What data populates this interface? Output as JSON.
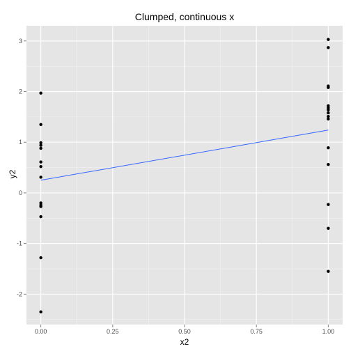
{
  "chart_data": {
    "type": "scatter",
    "title": "Clumped, continuous x",
    "xlabel": "x2",
    "ylabel": "y2",
    "xlim": [
      -0.05,
      1.05
    ],
    "ylim": [
      -2.6,
      3.3
    ],
    "x_ticks": [
      0.0,
      0.25,
      0.5,
      0.75,
      1.0
    ],
    "x_tick_labels": [
      "0.00",
      "0.25",
      "0.50",
      "0.75",
      "1.00"
    ],
    "y_ticks": [
      -2,
      -1,
      0,
      1,
      2,
      3
    ],
    "y_tick_labels": [
      "-2",
      "-1",
      "0",
      "1",
      "2",
      "3"
    ],
    "grid": true,
    "points": [
      {
        "x": 0,
        "y": 1.97
      },
      {
        "x": 0,
        "y": 1.35
      },
      {
        "x": 0,
        "y": 0.99
      },
      {
        "x": 0,
        "y": 0.94
      },
      {
        "x": 0,
        "y": 0.88
      },
      {
        "x": 0,
        "y": 0.61
      },
      {
        "x": 0,
        "y": 0.52
      },
      {
        "x": 0,
        "y": 0.31
      },
      {
        "x": 0,
        "y": -0.2
      },
      {
        "x": 0,
        "y": -0.24
      },
      {
        "x": 0,
        "y": -0.27
      },
      {
        "x": 0,
        "y": -0.47
      },
      {
        "x": 0,
        "y": -1.28
      },
      {
        "x": 0,
        "y": -2.35
      },
      {
        "x": 1,
        "y": 3.03
      },
      {
        "x": 1,
        "y": 2.87
      },
      {
        "x": 1,
        "y": 2.11
      },
      {
        "x": 1,
        "y": 2.08
      },
      {
        "x": 1,
        "y": 1.72
      },
      {
        "x": 1,
        "y": 1.68
      },
      {
        "x": 1,
        "y": 1.64
      },
      {
        "x": 1,
        "y": 1.58
      },
      {
        "x": 1,
        "y": 1.51
      },
      {
        "x": 1,
        "y": 1.46
      },
      {
        "x": 1,
        "y": 0.89
      },
      {
        "x": 1,
        "y": 0.56
      },
      {
        "x": 1,
        "y": -0.23
      },
      {
        "x": 1,
        "y": -0.7
      },
      {
        "x": 1,
        "y": -1.55
      }
    ],
    "fit_line": {
      "x": [
        0,
        1
      ],
      "y": [
        0.25,
        1.24
      ]
    },
    "colors": {
      "panel": "#e5e5e5",
      "grid_major": "#ffffff",
      "grid_minor": "#f2f2f2",
      "point": "#000000",
      "fit_line": "#3366ff"
    }
  }
}
